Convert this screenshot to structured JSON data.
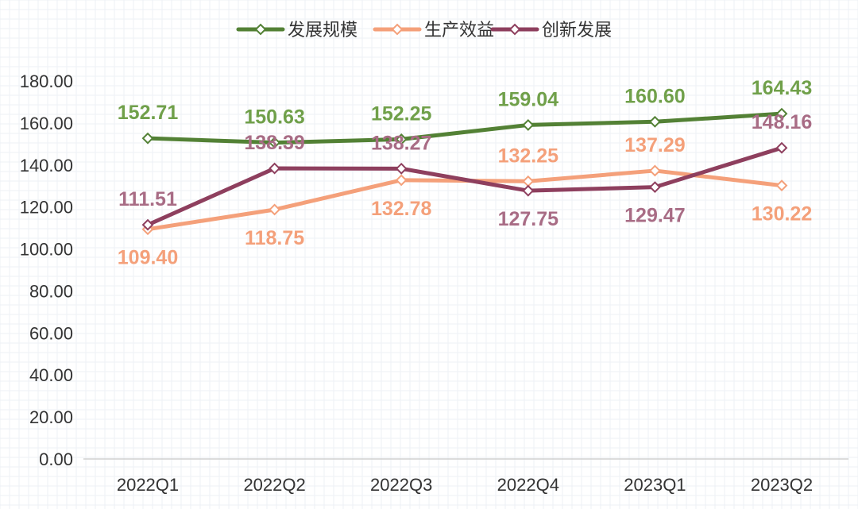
{
  "chart_data": {
    "type": "line",
    "categories": [
      "2022Q1",
      "2022Q2",
      "2022Q3",
      "2022Q4",
      "2023Q1",
      "2023Q2"
    ],
    "series": [
      {
        "name": "发展规模",
        "color": "#538135",
        "label_color": "#70a04a",
        "label_pos": [
          "above",
          "above",
          "above",
          "above",
          "above",
          "above"
        ],
        "values": [
          152.71,
          150.63,
          152.25,
          159.04,
          160.6,
          164.43
        ]
      },
      {
        "name": "生产效益",
        "color": "#f4a07a",
        "label_color": "#f4a07a",
        "label_pos": [
          "below",
          "below",
          "below",
          "above",
          "above",
          "below"
        ],
        "values": [
          109.4,
          118.75,
          132.78,
          132.25,
          137.29,
          130.22
        ]
      },
      {
        "name": "创新发展",
        "color": "#8e3f5e",
        "label_color": "#a86c85",
        "label_pos": [
          "above",
          "above",
          "above",
          "below",
          "below",
          "above"
        ],
        "values": [
          111.51,
          138.39,
          138.27,
          127.75,
          129.47,
          148.16
        ]
      }
    ],
    "ylim": [
      0,
      180
    ],
    "yticks": [
      "0.00",
      "20.00",
      "40.00",
      "60.00",
      "80.00",
      "100.00",
      "120.00",
      "140.00",
      "160.00",
      "180.00"
    ],
    "value_labels": [
      [
        "152.71",
        "150.63",
        "152.25",
        "159.04",
        "160.60",
        "164.43"
      ],
      [
        "109.40",
        "118.75",
        "132.78",
        "132.25",
        "137.29",
        "130.22"
      ],
      [
        "111.51",
        "138.39",
        "138.27",
        "127.75",
        "129.47",
        "148.16"
      ]
    ],
    "grid": true,
    "legend_position": "top-center",
    "marker": "diamond"
  }
}
